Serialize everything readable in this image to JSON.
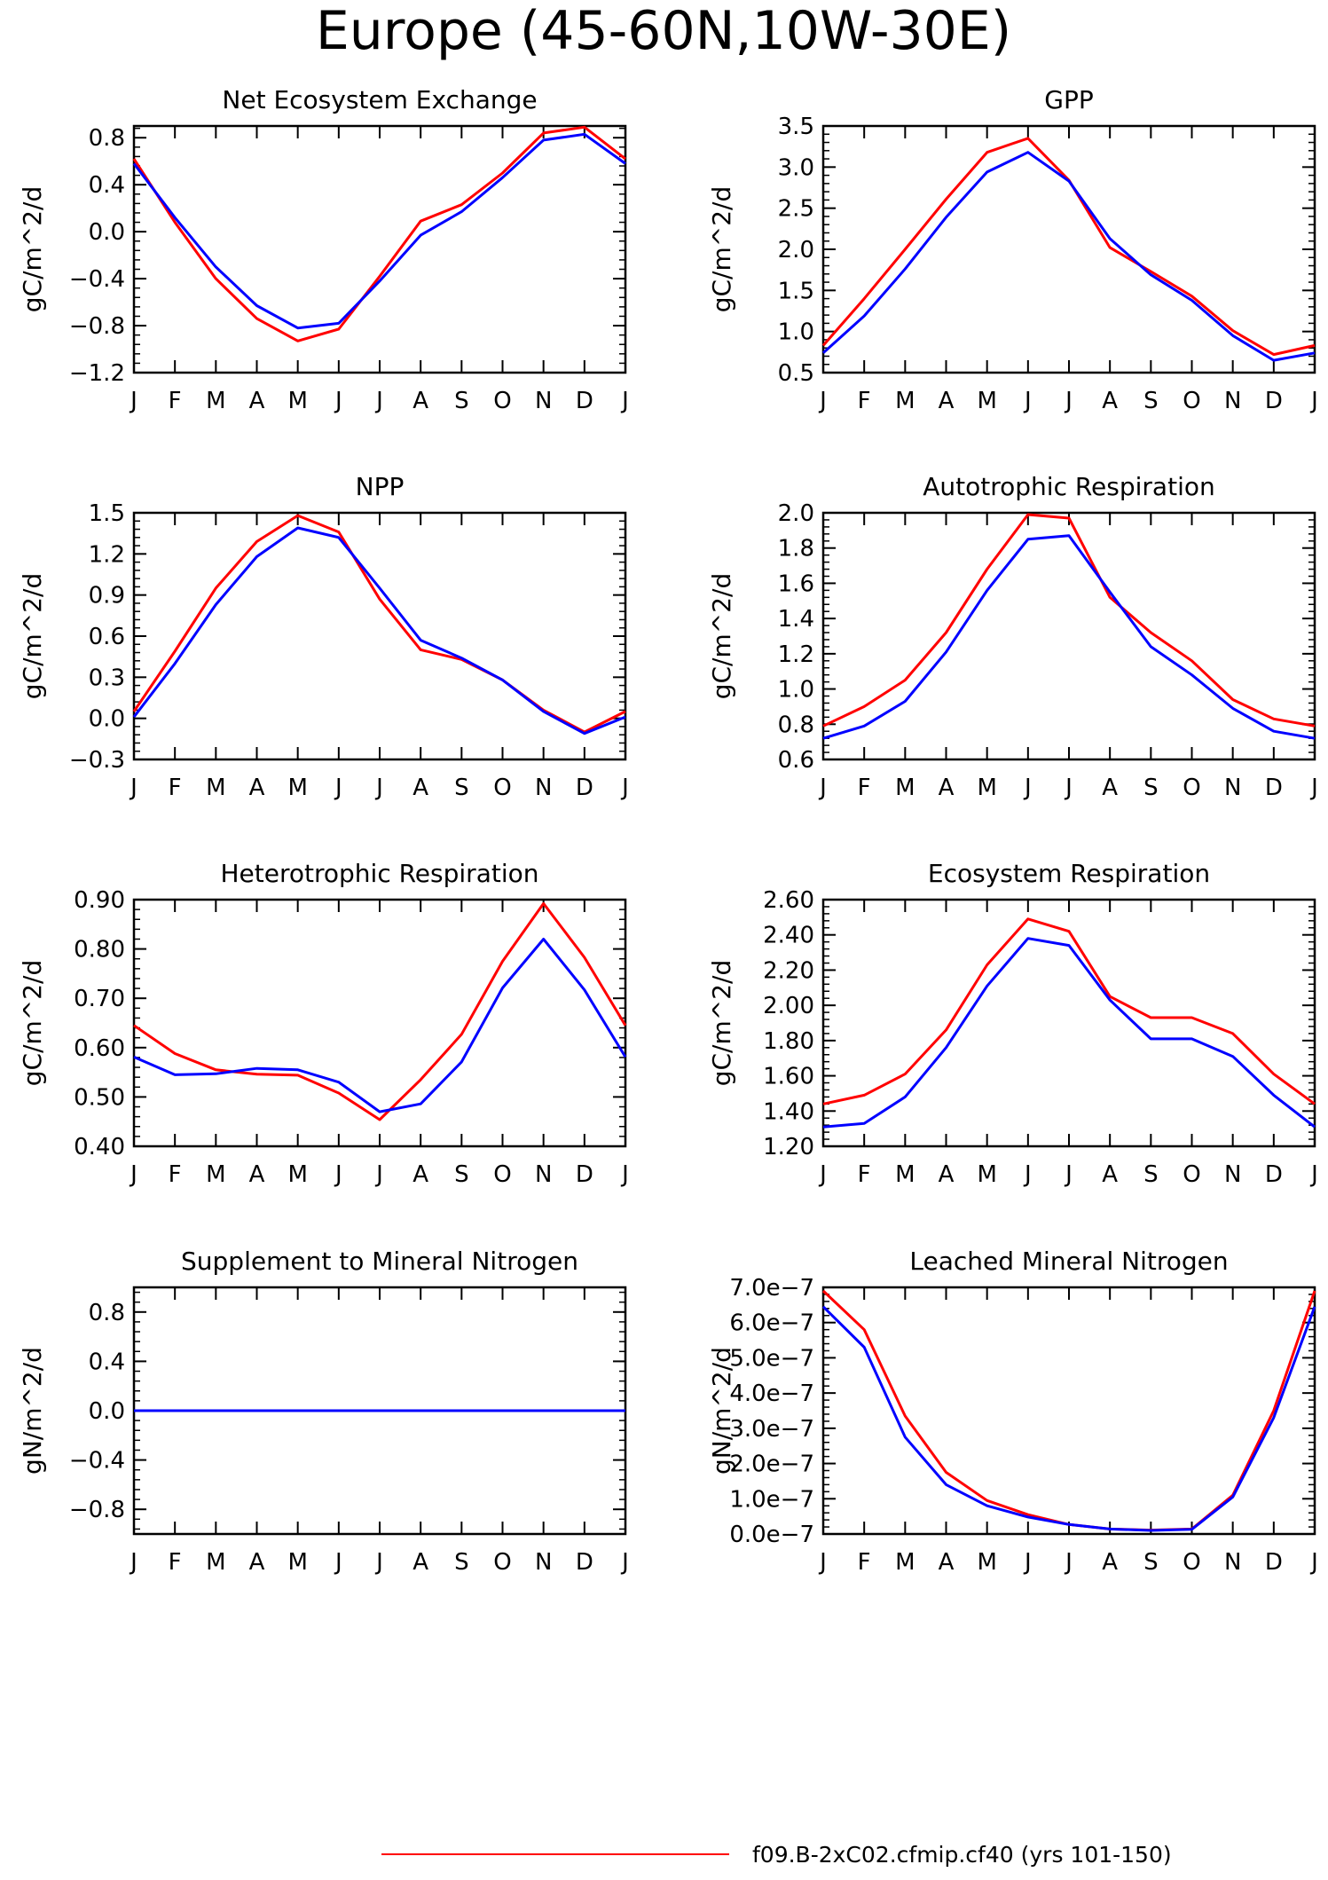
{
  "title": "Europe (45-60N,10W-30E)",
  "colors": {
    "case1": "#ff0000",
    "case2": "#0000ff"
  },
  "legend": [
    {
      "label": "f09.B-2xC02.cfmip.cf40 (yrs 101-150)",
      "color": "#ff0000"
    }
  ],
  "months": [
    "J",
    "F",
    "M",
    "A",
    "M",
    "J",
    "J",
    "A",
    "S",
    "O",
    "N",
    "D",
    "J"
  ],
  "chart_data": [
    {
      "type": "line",
      "title": "Net Ecosystem Exchange",
      "ylabel": "gC/m^2/d",
      "ylim": [
        -1.2,
        0.9
      ],
      "yticks": [
        -1.2,
        -0.8,
        -0.4,
        0.0,
        0.4,
        0.8
      ],
      "ytick_labels": [
        "-1.2",
        "-0.8",
        "-0.4",
        "0.0",
        "0.4",
        "0.8"
      ],
      "series": [
        {
          "values": [
            0.62,
            0.08,
            -0.4,
            -0.74,
            -0.93,
            -0.83,
            -0.38,
            0.09,
            0.23,
            0.5,
            0.84,
            0.89,
            0.62
          ]
        },
        {
          "values": [
            0.58,
            0.12,
            -0.3,
            -0.63,
            -0.82,
            -0.78,
            -0.42,
            -0.03,
            0.17,
            0.46,
            0.78,
            0.83,
            0.58
          ]
        }
      ]
    },
    {
      "type": "line",
      "title": "GPP",
      "ylabel": "gC/m^2/d",
      "ylim": [
        0.5,
        3.5
      ],
      "yticks": [
        0.5,
        1.0,
        1.5,
        2.0,
        2.5,
        3.0,
        3.5
      ],
      "ytick_labels": [
        "0.5",
        "1.0",
        "1.5",
        "2.0",
        "2.5",
        "3.0",
        "3.5"
      ],
      "series": [
        {
          "values": [
            0.83,
            1.4,
            2.0,
            2.61,
            3.18,
            3.35,
            2.84,
            2.02,
            1.73,
            1.43,
            1.01,
            0.72,
            0.83
          ]
        },
        {
          "values": [
            0.74,
            1.19,
            1.76,
            2.39,
            2.94,
            3.18,
            2.83,
            2.13,
            1.69,
            1.38,
            0.95,
            0.65,
            0.74
          ]
        }
      ]
    },
    {
      "type": "line",
      "title": "NPP",
      "ylabel": "gC/m^2/d",
      "ylim": [
        -0.3,
        1.5
      ],
      "yticks": [
        -0.3,
        0.0,
        0.3,
        0.6,
        0.9,
        1.2,
        1.5
      ],
      "ytick_labels": [
        "-0.3",
        "0.0",
        "0.3",
        "0.6",
        "0.9",
        "1.2",
        "1.5"
      ],
      "series": [
        {
          "values": [
            0.05,
            0.49,
            0.95,
            1.29,
            1.48,
            1.36,
            0.87,
            0.5,
            0.43,
            0.28,
            0.06,
            -0.1,
            0.05
          ]
        },
        {
          "values": [
            0.01,
            0.4,
            0.83,
            1.18,
            1.39,
            1.32,
            0.95,
            0.57,
            0.44,
            0.28,
            0.05,
            -0.11,
            0.01
          ]
        }
      ]
    },
    {
      "type": "line",
      "title": "Autotrophic Respiration",
      "ylabel": "gC/m^2/d",
      "ylim": [
        0.6,
        2.0
      ],
      "yticks": [
        0.6,
        0.8,
        1.0,
        1.2,
        1.4,
        1.6,
        1.8,
        2.0
      ],
      "ytick_labels": [
        "0.6",
        "0.8",
        "1.0",
        "1.2",
        "1.4",
        "1.6",
        "1.8",
        "2.0"
      ],
      "series": [
        {
          "values": [
            0.79,
            0.9,
            1.05,
            1.32,
            1.68,
            1.99,
            1.97,
            1.52,
            1.32,
            1.16,
            0.94,
            0.83,
            0.79
          ]
        },
        {
          "values": [
            0.72,
            0.79,
            0.93,
            1.21,
            1.56,
            1.85,
            1.87,
            1.55,
            1.24,
            1.08,
            0.89,
            0.76,
            0.72
          ]
        }
      ]
    },
    {
      "type": "line",
      "title": "Heterotrophic Respiration",
      "ylabel": "gC/m^2/d",
      "ylim": [
        0.4,
        0.9
      ],
      "yticks": [
        0.4,
        0.5,
        0.6,
        0.7,
        0.8,
        0.9
      ],
      "ytick_labels": [
        "0.40",
        "0.50",
        "0.60",
        "0.70",
        "0.80",
        "0.90"
      ],
      "series": [
        {
          "values": [
            0.645,
            0.588,
            0.555,
            0.546,
            0.544,
            0.508,
            0.454,
            0.535,
            0.627,
            0.775,
            0.892,
            0.783,
            0.645
          ]
        },
        {
          "values": [
            0.581,
            0.545,
            0.547,
            0.558,
            0.555,
            0.53,
            0.47,
            0.486,
            0.571,
            0.721,
            0.82,
            0.717,
            0.581
          ]
        }
      ]
    },
    {
      "type": "line",
      "title": "Ecosystem Respiration",
      "ylabel": "gC/m^2/d",
      "ylim": [
        1.2,
        2.6
      ],
      "yticks": [
        1.2,
        1.4,
        1.6,
        1.8,
        2.0,
        2.2,
        2.4,
        2.6
      ],
      "ytick_labels": [
        "1.20",
        "1.40",
        "1.60",
        "1.80",
        "2.00",
        "2.20",
        "2.40",
        "2.60"
      ],
      "series": [
        {
          "values": [
            1.44,
            1.49,
            1.61,
            1.86,
            2.23,
            2.49,
            2.42,
            2.05,
            1.93,
            1.93,
            1.84,
            1.61,
            1.44
          ]
        },
        {
          "values": [
            1.31,
            1.33,
            1.48,
            1.76,
            2.11,
            2.38,
            2.34,
            2.03,
            1.81,
            1.81,
            1.71,
            1.49,
            1.31
          ]
        }
      ]
    },
    {
      "type": "line",
      "title": "Supplement to Mineral Nitrogen",
      "ylabel": "gN/m^2/d",
      "ylim": [
        -1.0,
        1.0
      ],
      "yticks": [
        -0.8,
        -0.4,
        0.0,
        0.4,
        0.8
      ],
      "ytick_labels": [
        "-0.8",
        "-0.4",
        "0.0",
        "0.4",
        "0.8"
      ],
      "series": [
        {
          "values": [
            0,
            0,
            0,
            0,
            0,
            0,
            0,
            0,
            0,
            0,
            0,
            0,
            0
          ]
        },
        {
          "values": [
            0,
            0,
            0,
            0,
            0,
            0,
            0,
            0,
            0,
            0,
            0,
            0,
            0
          ]
        }
      ]
    },
    {
      "type": "line",
      "title": "Leached Mineral Nitrogen",
      "ylabel": "gN/m^2/d",
      "ylim": [
        0,
        7e-07
      ],
      "yticks": [
        0,
        1e-07,
        2e-07,
        3e-07,
        4e-07,
        5e-07,
        6e-07,
        7e-07
      ],
      "ytick_labels": [
        "0.0e-7",
        "1.0e-7",
        "2.0e-7",
        "3.0e-7",
        "4.0e-7",
        "5.0e-7",
        "6.0e-7",
        "7.0e-7"
      ],
      "series": [
        {
          "values": [
            6.9e-07,
            5.8e-07,
            3.35e-07,
            1.75e-07,
            9.5e-08,
            5.5e-08,
            2.7e-08,
            1.4e-08,
            1.1e-08,
            1.4e-08,
            1.1e-07,
            3.5e-07,
            6.9e-07
          ]
        },
        {
          "values": [
            6.45e-07,
            5.3e-07,
            2.75e-07,
            1.4e-07,
            8e-08,
            4.8e-08,
            2.7e-08,
            1.4e-08,
            1e-08,
            1.3e-08,
            1.05e-07,
            3.3e-07,
            6.45e-07
          ]
        }
      ]
    }
  ]
}
